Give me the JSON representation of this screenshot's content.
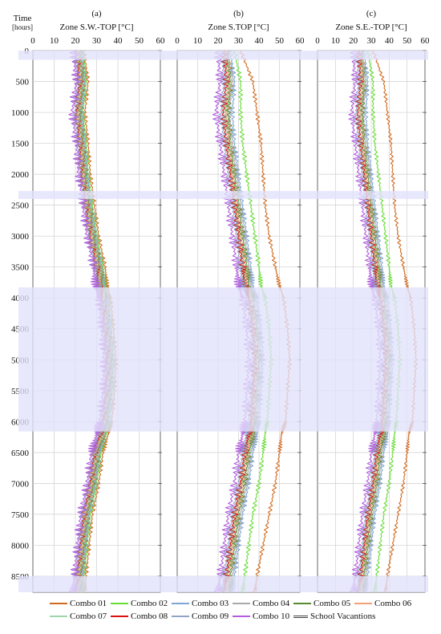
{
  "y_axis": {
    "label_line1": "Time",
    "label_line2": "[hours]"
  },
  "chart_data": [
    {
      "type": "line",
      "panel_letter": "(a)",
      "title": "Zone S.W.-TOP [°C]",
      "xlim": [
        0,
        60
      ],
      "x_ticks": [
        0,
        10,
        20,
        30,
        40,
        50,
        60
      ],
      "ylim": [
        0,
        8760
      ],
      "y_ticks": [
        0,
        500,
        1000,
        1500,
        2000,
        2500,
        3000,
        3500,
        4000,
        4500,
        5000,
        5500,
        6000,
        6500,
        7000,
        7500,
        8000,
        8500
      ],
      "hours": [
        0,
        500,
        1000,
        1500,
        2000,
        2500,
        3000,
        3500,
        3800,
        4000,
        4500,
        5000,
        5500,
        6000,
        6200,
        6500,
        7000,
        7500,
        8000,
        8500,
        8760
      ],
      "vacations": [
        [
          0,
          150
        ],
        [
          2270,
          2400
        ],
        [
          3830,
          6160
        ],
        [
          8500,
          8760
        ]
      ],
      "series": [
        {
          "name": "Combo 01",
          "values": [
            24,
            26,
            24.5,
            26,
            27,
            29,
            31,
            34,
            35,
            36.5,
            38,
            39,
            38.5,
            37,
            35.5,
            33,
            31,
            28,
            26.5,
            25,
            24.5
          ]
        },
        {
          "name": "Combo 02",
          "values": [
            23.5,
            25,
            23.5,
            25,
            26,
            28,
            30,
            33,
            34,
            35.5,
            37,
            38,
            37.5,
            36,
            34.5,
            32,
            30,
            27,
            25.5,
            24,
            23.5
          ]
        },
        {
          "name": "Combo 03",
          "values": [
            23,
            24.5,
            23,
            24.5,
            25.5,
            27.5,
            29.5,
            32.5,
            33.5,
            35,
            36.5,
            37.5,
            37,
            35.5,
            34,
            31.5,
            29.5,
            26.5,
            25,
            23.5,
            23
          ]
        },
        {
          "name": "Combo 04",
          "values": [
            22.5,
            24,
            22.5,
            24,
            25,
            27,
            29,
            32,
            33,
            34.5,
            36,
            37,
            36.5,
            35,
            33.5,
            31,
            29,
            26,
            24.5,
            23,
            22.5
          ]
        },
        {
          "name": "Combo 05",
          "values": [
            22,
            23.5,
            22,
            23.5,
            24.5,
            26.5,
            28.5,
            31.5,
            32.5,
            34,
            35.5,
            36.5,
            36,
            34.5,
            33,
            30.5,
            28.5,
            25.5,
            24,
            22.5,
            22
          ]
        },
        {
          "name": "Combo 06",
          "values": [
            21.5,
            23,
            21.5,
            23,
            24,
            26,
            28,
            31,
            32,
            33.5,
            35,
            36,
            35.5,
            34,
            32.5,
            30,
            28,
            25,
            23.5,
            22,
            21.5
          ]
        },
        {
          "name": "Combo 07",
          "values": [
            21,
            22.5,
            21,
            22.5,
            23.5,
            25.5,
            27.5,
            30.5,
            31.5,
            33,
            34.5,
            35.5,
            35,
            33.5,
            32,
            29.5,
            27.5,
            24.5,
            23,
            21.5,
            21
          ]
        },
        {
          "name": "Combo 08",
          "values": [
            20.5,
            22,
            20.5,
            22,
            23,
            25,
            27,
            30,
            31,
            32.5,
            34,
            35,
            34.5,
            33,
            31.5,
            29,
            27,
            24,
            22.5,
            21,
            20.5
          ]
        },
        {
          "name": "Combo 09",
          "values": [
            20,
            21.5,
            20,
            21.5,
            22.5,
            24.5,
            26.5,
            29.5,
            30.5,
            32,
            33.5,
            34.5,
            34,
            32.5,
            31,
            28.5,
            26.5,
            23.5,
            22,
            20.5,
            20
          ]
        },
        {
          "name": "Combo 10",
          "values": [
            19,
            20.5,
            18.5,
            20.5,
            21.5,
            23.5,
            25.5,
            28.5,
            29.5,
            31,
            32.5,
            33.5,
            33,
            31.5,
            30,
            27.5,
            25.5,
            22.5,
            21,
            19.5,
            19
          ]
        }
      ]
    },
    {
      "type": "line",
      "panel_letter": "(b)",
      "title": "Zone S.TOP [°C]",
      "xlim": [
        0,
        60
      ],
      "x_ticks": [
        0,
        10,
        20,
        30,
        40,
        50,
        60
      ],
      "ylim": [
        0,
        8760
      ],
      "y_ticks": [
        0,
        500,
        1000,
        1500,
        2000,
        2500,
        3000,
        3500,
        4000,
        4500,
        5000,
        5500,
        6000,
        6500,
        7000,
        7500,
        8000,
        8500
      ],
      "hours": [
        0,
        500,
        1000,
        1500,
        2000,
        2500,
        3000,
        3500,
        3800,
        4000,
        4500,
        5000,
        5500,
        6000,
        6200,
        6500,
        7000,
        7500,
        8000,
        8500,
        8760
      ],
      "vacations": [
        [
          0,
          150
        ],
        [
          2270,
          2400
        ],
        [
          3830,
          6160
        ],
        [
          8500,
          8760
        ]
      ],
      "series": [
        {
          "name": "Combo 01",
          "values": [
            31,
            37,
            39,
            41,
            42,
            43,
            45,
            48,
            50,
            52,
            54,
            55,
            54,
            53,
            51,
            50,
            48,
            45,
            42,
            39,
            38
          ]
        },
        {
          "name": "Combo 02",
          "values": [
            28,
            31,
            31,
            32,
            34,
            36,
            38,
            40,
            41,
            43,
            45,
            46,
            45,
            44,
            43,
            42,
            40,
            37,
            35,
            33,
            32
          ]
        },
        {
          "name": "Combo 03",
          "values": [
            26,
            28,
            27,
            28,
            30,
            32,
            34,
            36,
            37,
            39,
            41,
            42,
            41,
            40,
            39,
            37,
            35,
            32,
            30,
            28,
            27
          ]
        },
        {
          "name": "Combo 04",
          "values": [
            25,
            27,
            25.5,
            27,
            29,
            31,
            33,
            35,
            36,
            38,
            40,
            41,
            40,
            39,
            38,
            36,
            34,
            31,
            29,
            27,
            26
          ]
        },
        {
          "name": "Combo 05",
          "values": [
            24.5,
            26,
            25,
            26,
            28,
            30,
            32,
            34,
            35,
            37,
            39,
            40,
            39,
            38,
            37,
            35,
            33,
            30,
            28,
            26,
            25.5
          ]
        },
        {
          "name": "Combo 06",
          "values": [
            24,
            25.5,
            24,
            25.5,
            27,
            29,
            31,
            33,
            34,
            36,
            38,
            39,
            38,
            37,
            36,
            34,
            32,
            29,
            27,
            25,
            24.5
          ]
        },
        {
          "name": "Combo 07",
          "values": [
            23.5,
            25,
            23.5,
            25,
            26.5,
            28.5,
            30.5,
            32.5,
            33.5,
            35.5,
            37.5,
            38.5,
            37.5,
            36.5,
            35.5,
            33.5,
            31.5,
            28.5,
            26.5,
            24.5,
            24
          ]
        },
        {
          "name": "Combo 08",
          "values": [
            23,
            24,
            22.5,
            24,
            26,
            28,
            30,
            32,
            33,
            35,
            37,
            38,
            37,
            36,
            35,
            33,
            31,
            28,
            26,
            24,
            23
          ]
        },
        {
          "name": "Combo 09",
          "values": [
            22,
            23,
            21.5,
            23,
            25,
            27,
            29,
            31,
            32,
            34,
            36,
            37,
            36,
            35,
            34,
            32,
            30,
            27,
            25,
            23,
            22
          ]
        },
        {
          "name": "Combo 10",
          "values": [
            20,
            21,
            19,
            21,
            23,
            25,
            27,
            29,
            30,
            32,
            34,
            35,
            34,
            33,
            32,
            30,
            28,
            25,
            23,
            21,
            20
          ]
        }
      ]
    },
    {
      "type": "line",
      "panel_letter": "(c)",
      "title": "Zone S.E.-TOP [°C]",
      "xlim": [
        0,
        60
      ],
      "x_ticks": [
        0,
        10,
        20,
        30,
        40,
        50,
        60
      ],
      "ylim": [
        0,
        8760
      ],
      "y_ticks": [
        0,
        500,
        1000,
        1500,
        2000,
        2500,
        3000,
        3500,
        4000,
        4500,
        5000,
        5500,
        6000,
        6500,
        7000,
        7500,
        8000,
        8500
      ],
      "hours": [
        0,
        500,
        1000,
        1500,
        2000,
        2500,
        3000,
        3500,
        3800,
        4000,
        4500,
        5000,
        5500,
        6000,
        6200,
        6500,
        7000,
        7500,
        8000,
        8500,
        8760
      ],
      "vacations": [
        [
          0,
          150
        ],
        [
          2270,
          2400
        ],
        [
          3830,
          6160
        ],
        [
          8500,
          8760
        ]
      ],
      "series": [
        {
          "name": "Combo 01",
          "values": [
            31,
            37,
            39,
            41,
            42,
            43,
            45,
            48,
            50,
            52,
            54,
            55,
            54,
            53,
            51,
            50,
            48,
            45,
            42,
            39,
            38
          ]
        },
        {
          "name": "Combo 02",
          "values": [
            28,
            31,
            31,
            32,
            34,
            36,
            38,
            40,
            41,
            43,
            45,
            46,
            45,
            44,
            43,
            42,
            40,
            37,
            35,
            33,
            32
          ]
        },
        {
          "name": "Combo 03",
          "values": [
            26,
            28,
            27,
            28,
            30,
            32,
            34,
            36,
            37,
            39,
            41,
            42,
            41,
            40,
            39,
            37,
            35,
            32,
            30,
            28,
            27
          ]
        },
        {
          "name": "Combo 04",
          "values": [
            25,
            27,
            25.5,
            27,
            29,
            31,
            33,
            35,
            36,
            38,
            40,
            41,
            40,
            39,
            38,
            36,
            34,
            31,
            29,
            27,
            26
          ]
        },
        {
          "name": "Combo 05",
          "values": [
            24.5,
            26,
            25,
            26,
            28,
            30,
            32,
            34,
            35,
            37,
            39,
            40,
            39,
            38,
            37,
            35,
            33,
            30,
            28,
            26,
            25.5
          ]
        },
        {
          "name": "Combo 06",
          "values": [
            24,
            25.5,
            24,
            25.5,
            27,
            29,
            31,
            33,
            34,
            36,
            38,
            39,
            38,
            37,
            36,
            34,
            32,
            29,
            27,
            25,
            24.5
          ]
        },
        {
          "name": "Combo 07",
          "values": [
            23.5,
            25,
            23.5,
            25,
            26.5,
            28.5,
            30.5,
            32.5,
            33.5,
            35.5,
            37.5,
            38.5,
            37.5,
            36.5,
            35.5,
            33.5,
            31.5,
            28.5,
            26.5,
            24.5,
            24
          ]
        },
        {
          "name": "Combo 08",
          "values": [
            23,
            24,
            22.5,
            24,
            26,
            28,
            30,
            32,
            33,
            35,
            37,
            38,
            37,
            36,
            35,
            33,
            31,
            28,
            26,
            24,
            23
          ]
        },
        {
          "name": "Combo 09",
          "values": [
            22,
            23,
            21.5,
            23,
            25,
            27,
            29,
            31,
            32,
            34,
            36,
            37,
            36,
            35,
            34,
            32,
            30,
            27,
            25,
            23,
            22
          ]
        },
        {
          "name": "Combo 10",
          "values": [
            20,
            21,
            19,
            21,
            23,
            25,
            27,
            29,
            30,
            32,
            34,
            35,
            34,
            33,
            32,
            30,
            28,
            25,
            23,
            21,
            20
          ]
        }
      ]
    }
  ],
  "legend": {
    "items": [
      {
        "label": "Combo 01",
        "color": "#d2691e"
      },
      {
        "label": "Combo 02",
        "color": "#66dd33"
      },
      {
        "label": "Combo 03",
        "color": "#7fa6d6"
      },
      {
        "label": "Combo 04",
        "color": "#a9a9a9"
      },
      {
        "label": "Combo 05",
        "color": "#5a8a2f"
      },
      {
        "label": "Combo 06",
        "color": "#f4a07a"
      },
      {
        "label": "Combo 07",
        "color": "#9ed6a8"
      },
      {
        "label": "Combo 08",
        "color": "#dd1111"
      },
      {
        "label": "Combo 09",
        "color": "#8fa4c8"
      },
      {
        "label": "Combo 10",
        "color": "#b45ce0"
      }
    ],
    "vacation_label": "School Vacantions",
    "vacation_color": "#e2e2fb"
  }
}
